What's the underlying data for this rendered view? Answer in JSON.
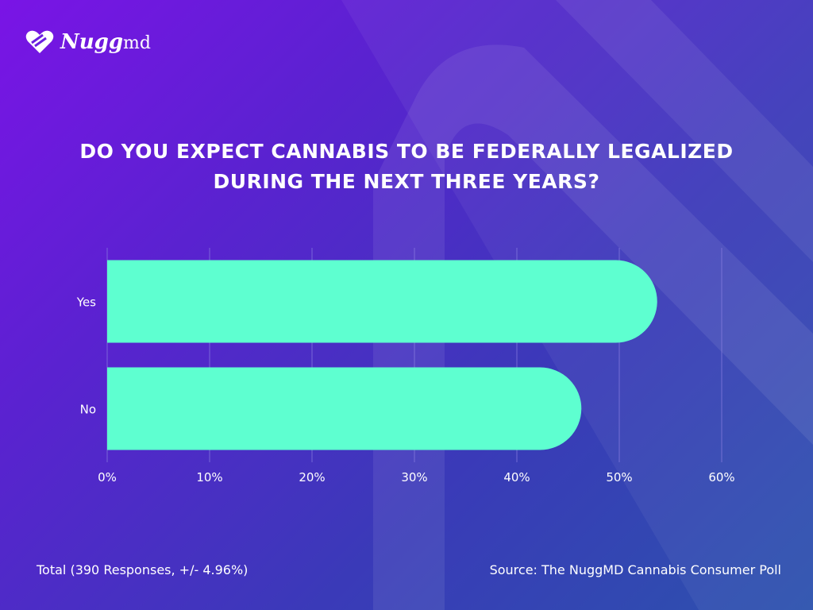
{
  "brand": {
    "name": "Nugg",
    "suffix": "md"
  },
  "footer": {
    "total": "Total (390 Responses, +/- 4.96%)",
    "source": "Source: The NuggMD Cannabis Consumer Poll"
  },
  "colors": {
    "bar": "#5effd0",
    "grid": "#8a7fe0",
    "text": "#ffffff"
  },
  "chart_data": {
    "type": "bar",
    "orientation": "horizontal",
    "title": "DO YOU EXPECT CANNABIS TO BE FEDERALLY LEGALIZED DURING THE NEXT THREE YEARS?",
    "title_lines": [
      "DO YOU EXPECT CANNABIS TO BE FEDERALLY LEGALIZED",
      "DURING THE NEXT THREE YEARS?"
    ],
    "categories": [
      "Yes",
      "No"
    ],
    "values": [
      53.7,
      46.3
    ],
    "xlim": [
      0,
      60
    ],
    "xticks": [
      0,
      10,
      20,
      30,
      40,
      50,
      60
    ],
    "xtick_labels": [
      "0%",
      "10%",
      "20%",
      "30%",
      "40%",
      "50%",
      "60%"
    ],
    "grid": true,
    "legend": "none"
  }
}
